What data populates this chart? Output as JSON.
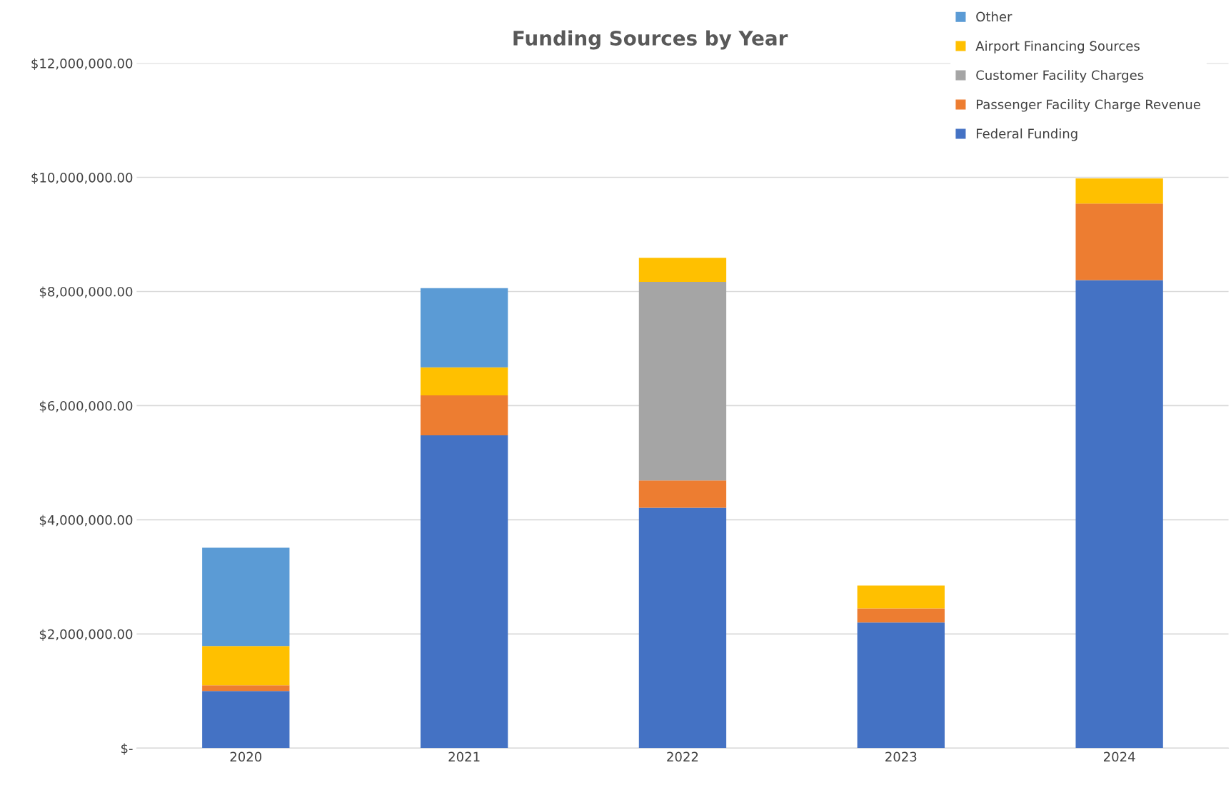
{
  "chart_data": {
    "type": "bar",
    "title": "Funding Sources by Year",
    "stacked": true,
    "categories": [
      "2020",
      "2021",
      "2022",
      "2023",
      "2024"
    ],
    "series": [
      {
        "name": "Federal Funding",
        "color": "#4472c4",
        "values": [
          1000000,
          5480000,
          4210000,
          2200000,
          8200000
        ]
      },
      {
        "name": "Passenger Facility Charge Revenue",
        "color": "#ed7d31",
        "values": [
          100000,
          700000,
          480000,
          250000,
          1340000
        ]
      },
      {
        "name": "Customer Facility Charges",
        "color": "#a5a5a5",
        "values": [
          null,
          null,
          3480000,
          null,
          null
        ]
      },
      {
        "name": "Airport Financing Sources",
        "color": "#ffc000",
        "values": [
          690000,
          490000,
          420000,
          400000,
          440000
        ]
      },
      {
        "name": "Other",
        "color": "#5b9bd5",
        "values": [
          1720000,
          1390000,
          null,
          null,
          null
        ]
      }
    ],
    "ylim": [
      0,
      12000000
    ],
    "yticks": [
      {
        "value": 0,
        "label": "$-"
      },
      {
        "value": 2000000,
        "label": "$2,000,000.00"
      },
      {
        "value": 4000000,
        "label": "$4,000,000.00"
      },
      {
        "value": 6000000,
        "label": "$6,000,000.00"
      },
      {
        "value": 8000000,
        "label": "$8,000,000.00"
      },
      {
        "value": 10000000,
        "label": "$10,000,000.00"
      },
      {
        "value": 12000000,
        "label": "$12,000,000.00"
      }
    ],
    "grid": "y",
    "legend": "top right"
  }
}
